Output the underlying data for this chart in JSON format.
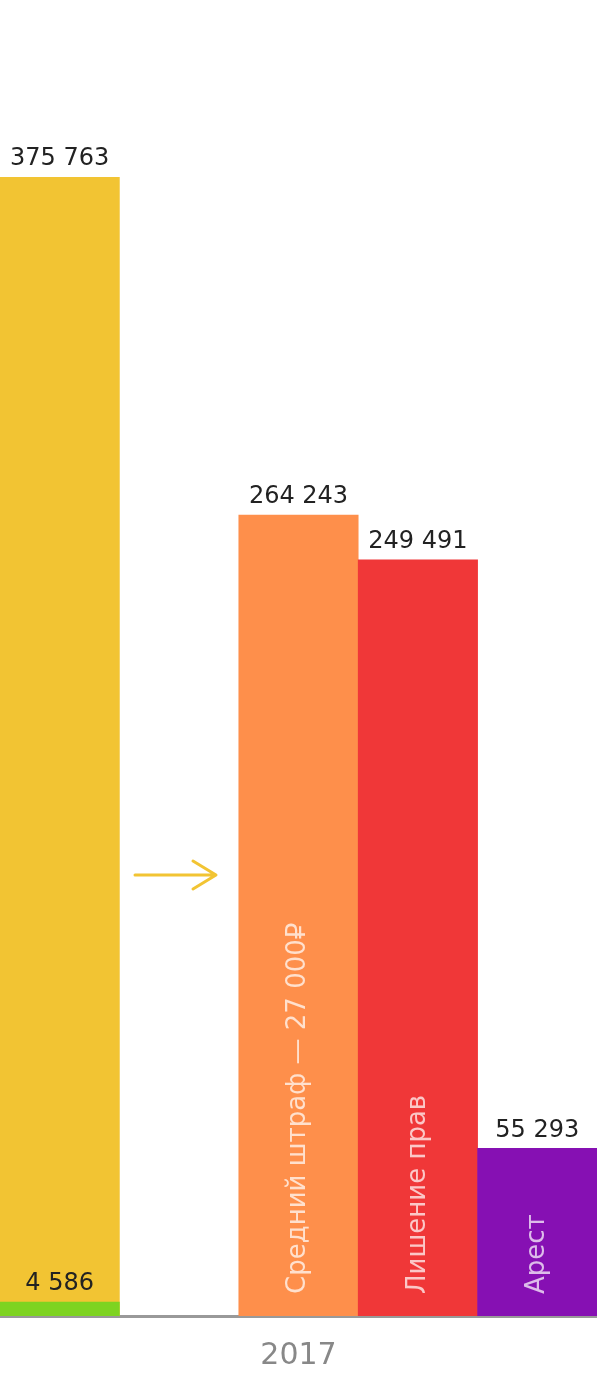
{
  "chart_data": {
    "type": "bar",
    "xlabel": "2017",
    "categories": [
      null,
      null,
      "Средний штраф — 27 000₽",
      "Лишение прав",
      "Арест"
    ],
    "series": [
      {
        "color": "#7ed321",
        "values": [
          4586,
          null,
          null,
          null,
          null
        ],
        "value_labels": [
          "4 586",
          null,
          null,
          null,
          null
        ]
      },
      {
        "colors": [
          "#f2c433",
          null,
          "#fe8f4b",
          "#f03738",
          "#8610b3"
        ],
        "values": [
          375763,
          null,
          264243,
          249491,
          55293
        ],
        "value_labels": [
          "375 763",
          null,
          "264 243",
          "249 491",
          "55 293"
        ]
      }
    ],
    "grid": false,
    "legend": false
  }
}
